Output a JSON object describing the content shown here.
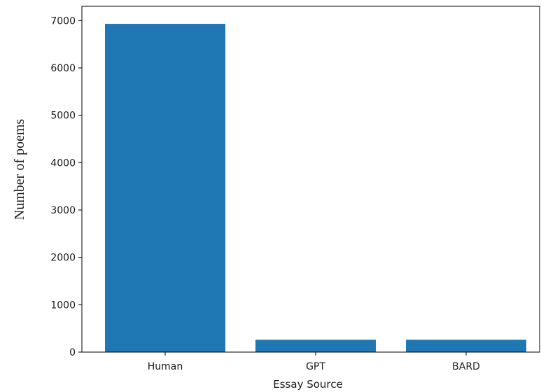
{
  "chart_data": {
    "type": "bar",
    "categories": [
      "Human",
      "GPT",
      "BARD"
    ],
    "values": [
      6930,
      260,
      260
    ],
    "title": "",
    "xlabel": "Essay Source",
    "ylabel": "Number of poems",
    "ylim": [
      0,
      7300
    ],
    "yticks": [
      "0",
      "1000",
      "2000",
      "3000",
      "4000",
      "5000",
      "6000",
      "7000"
    ],
    "bar_color": "#1f77b4",
    "grid": false,
    "legend": "none"
  }
}
